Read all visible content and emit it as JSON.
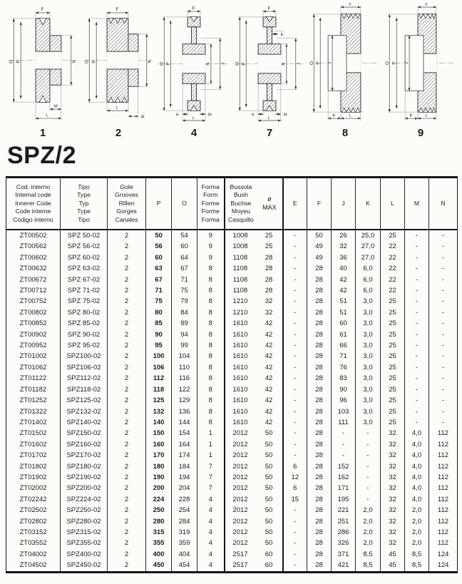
{
  "page": {
    "title": "SPZ/2"
  },
  "drawings": [
    {
      "number": "1",
      "dims": [
        "F",
        "O",
        "P",
        "N",
        "M",
        "L"
      ]
    },
    {
      "number": "2",
      "dims": [
        "F",
        "O",
        "P",
        "N",
        "L",
        "M"
      ]
    },
    {
      "number": "4",
      "dims": [
        "F",
        "O",
        "P",
        "N",
        "J",
        "K",
        "M",
        "L"
      ]
    },
    {
      "number": "7",
      "dims": [
        "F",
        "E",
        "O",
        "P",
        "N",
        "J",
        "K",
        "M",
        "L"
      ]
    },
    {
      "number": "8",
      "dims": [
        "F",
        "O",
        "P",
        "J",
        "K",
        "L"
      ]
    },
    {
      "number": "9",
      "dims": [
        "F",
        "O",
        "P",
        "J",
        "K",
        "L"
      ]
    }
  ],
  "table": {
    "header": {
      "code": [
        "Cod. interno",
        "Internal code",
        "Innerer Code",
        "Code interne",
        "Còdigo interno"
      ],
      "type": [
        "Tipo",
        "Type",
        "Typ",
        "Type",
        "Tipo"
      ],
      "grooves": [
        "Gole",
        "Grooves",
        "Rillen",
        "Gorges",
        "Canales"
      ],
      "p": "P",
      "o": "O",
      "form": [
        "Forma",
        "Form",
        "Forme",
        "Forme",
        "Forma"
      ],
      "bush": [
        "Bussola",
        "Bush",
        "Buchse",
        "Moyeu",
        "Casquillo"
      ],
      "dia_max": [
        "ø",
        "MAX"
      ],
      "letters": [
        "E",
        "F",
        "J",
        "K",
        "L",
        "M",
        "N"
      ]
    },
    "col_keys": [
      "code",
      "tipo",
      "gole",
      "p",
      "o",
      "forma",
      "bussola",
      "omax",
      "e",
      "f",
      "j",
      "k",
      "l",
      "m",
      "n"
    ],
    "rows": [
      [
        "ZT00502",
        "SPZ 50-02",
        "2",
        "50",
        "54",
        "9",
        "1008",
        "25",
        "-",
        "50",
        "26",
        "25,0",
        "25",
        "-",
        "-"
      ],
      [
        "ZT00562",
        "SPZ 56-02",
        "2",
        "56",
        "60",
        "9",
        "1008",
        "25",
        "-",
        "49",
        "32",
        "27,0",
        "22",
        "-",
        "-"
      ],
      [
        "ZT00602",
        "SPZ 60-02",
        "2",
        "60",
        "64",
        "9",
        "1108",
        "28",
        "-",
        "49",
        "36",
        "27,0",
        "22",
        "-",
        "-"
      ],
      [
        "ZT00632",
        "SPZ 63-02",
        "2",
        "63",
        "67",
        "8",
        "1108",
        "28",
        "-",
        "28",
        "40",
        "6,0",
        "22",
        "-",
        "-"
      ],
      [
        "ZT00672",
        "SPZ 67-02",
        "2",
        "67",
        "71",
        "8",
        "1108",
        "28",
        "-",
        "28",
        "42",
        "6,0",
        "22",
        "-",
        "-"
      ],
      [
        "ZT00712",
        "SPZ 71-02",
        "2",
        "71",
        "75",
        "8",
        "1108",
        "28",
        "-",
        "28",
        "42",
        "6,0",
        "22",
        "-",
        "-"
      ],
      [
        "ZT00752",
        "SPZ 75-02",
        "2",
        "75",
        "79",
        "8",
        "1210",
        "32",
        "-",
        "28",
        "51",
        "3,0",
        "25",
        "-",
        "-"
      ],
      [
        "ZT00802",
        "SPZ 80-02",
        "2",
        "80",
        "84",
        "8",
        "1210",
        "32",
        "-",
        "28",
        "51",
        "3,0",
        "25",
        "-",
        "-"
      ],
      [
        "ZT00852",
        "SPZ 85-02",
        "2",
        "85",
        "89",
        "8",
        "1610",
        "42",
        "-",
        "28",
        "60",
        "3,0",
        "25",
        "-",
        "-"
      ],
      [
        "ZT00902",
        "SPZ 90-02",
        "2",
        "90",
        "94",
        "8",
        "1610",
        "42",
        "-",
        "28",
        "61",
        "3,0",
        "25",
        "-",
        "-"
      ],
      [
        "ZT00952",
        "SPZ 95-02",
        "2",
        "95",
        "99",
        "8",
        "1610",
        "42",
        "-",
        "28",
        "66",
        "3,0",
        "25",
        "-",
        "-"
      ],
      [
        "ZT01002",
        "SPZ100-02",
        "2",
        "100",
        "104",
        "8",
        "1610",
        "42",
        "-",
        "28",
        "71",
        "3,0",
        "25",
        "-",
        "-"
      ],
      [
        "ZT01062",
        "SPZ106-02",
        "2",
        "106",
        "110",
        "8",
        "1610",
        "42",
        "-",
        "28",
        "76",
        "3,0",
        "25",
        "-",
        "-"
      ],
      [
        "ZT01122",
        "SPZ112-02",
        "2",
        "112",
        "116",
        "8",
        "1610",
        "42",
        "-",
        "28",
        "83",
        "3,0",
        "25",
        "-",
        "-"
      ],
      [
        "ZT01182",
        "SPZ118-02",
        "2",
        "118",
        "122",
        "8",
        "1610",
        "42",
        "-",
        "28",
        "90",
        "3,0",
        "25",
        "-",
        "-"
      ],
      [
        "ZT01252",
        "SPZ125-02",
        "2",
        "125",
        "129",
        "8",
        "1610",
        "42",
        "-",
        "28",
        "96",
        "3,0",
        "25",
        "-",
        "-"
      ],
      [
        "ZT01322",
        "SPZ132-02",
        "2",
        "132",
        "136",
        "8",
        "1610",
        "42",
        "-",
        "28",
        "103",
        "3,0",
        "25",
        "-",
        "-"
      ],
      [
        "ZT01402",
        "SPZ140-02",
        "2",
        "140",
        "144",
        "8",
        "1610",
        "42",
        "-",
        "28",
        "111",
        "3,0",
        "25",
        "-",
        "-"
      ],
      [
        "ZT01502",
        "SPZ150-02",
        "2",
        "150",
        "154",
        "1",
        "2012",
        "50",
        "-",
        "28",
        "-",
        "-",
        "32",
        "4,0",
        "112"
      ],
      [
        "ZT01602",
        "SPZ160-02",
        "2",
        "160",
        "164",
        "1",
        "2012",
        "50",
        "-",
        "28",
        "-",
        "-",
        "32",
        "4,0",
        "112"
      ],
      [
        "ZT01702",
        "SPZ170-02",
        "2",
        "170",
        "174",
        "1",
        "2012",
        "50",
        "-",
        "28",
        "-",
        "-",
        "32",
        "4,0",
        "112"
      ],
      [
        "ZT01802",
        "SPZ180-02",
        "2",
        "180",
        "184",
        "7",
        "2012",
        "50",
        "6",
        "28",
        "152",
        "-",
        "32",
        "4,0",
        "112"
      ],
      [
        "ZT01902",
        "SPZ190-02",
        "2",
        "190",
        "194",
        "7",
        "2012",
        "50",
        "12",
        "28",
        "162",
        "-",
        "32",
        "4,0",
        "112"
      ],
      [
        "ZT02002",
        "SPZ200-02",
        "2",
        "200",
        "204",
        "7",
        "2012",
        "50",
        "6",
        "28",
        "171",
        "-",
        "32",
        "4,0",
        "112"
      ],
      [
        "ZT02242",
        "SPZ224-02",
        "2",
        "224",
        "228",
        "4",
        "2012",
        "50",
        "15",
        "28",
        "195",
        "-",
        "32",
        "4,0",
        "112"
      ],
      [
        "ZT02502",
        "SPZ250-02",
        "2",
        "250",
        "254",
        "4",
        "2012",
        "50",
        "-",
        "28",
        "221",
        "2,0",
        "32",
        "2,0",
        "112"
      ],
      [
        "ZT02802",
        "SPZ280-02",
        "2",
        "280",
        "284",
        "4",
        "2012",
        "50",
        "-",
        "28",
        "251",
        "2,0",
        "32",
        "2,0",
        "112"
      ],
      [
        "ZT03152",
        "SPZ315-02",
        "2",
        "315",
        "319",
        "4",
        "2012",
        "50",
        "-",
        "28",
        "286",
        "2,0",
        "32",
        "2,0",
        "112"
      ],
      [
        "ZT03552",
        "SPZ355-02",
        "2",
        "355",
        "359",
        "4",
        "2012",
        "50",
        "-",
        "28",
        "326",
        "2,0",
        "32",
        "2,0",
        "112"
      ],
      [
        "ZT04002",
        "SPZ400-02",
        "2",
        "400",
        "404",
        "4",
        "2517",
        "60",
        "-",
        "28",
        "371",
        "8,5",
        "45",
        "8,5",
        "124"
      ],
      [
        "ZT04502",
        "SPZ450-02",
        "2",
        "450",
        "454",
        "4",
        "2517",
        "60",
        "-",
        "28",
        "421",
        "8,5",
        "45",
        "8,5",
        "124"
      ]
    ]
  }
}
